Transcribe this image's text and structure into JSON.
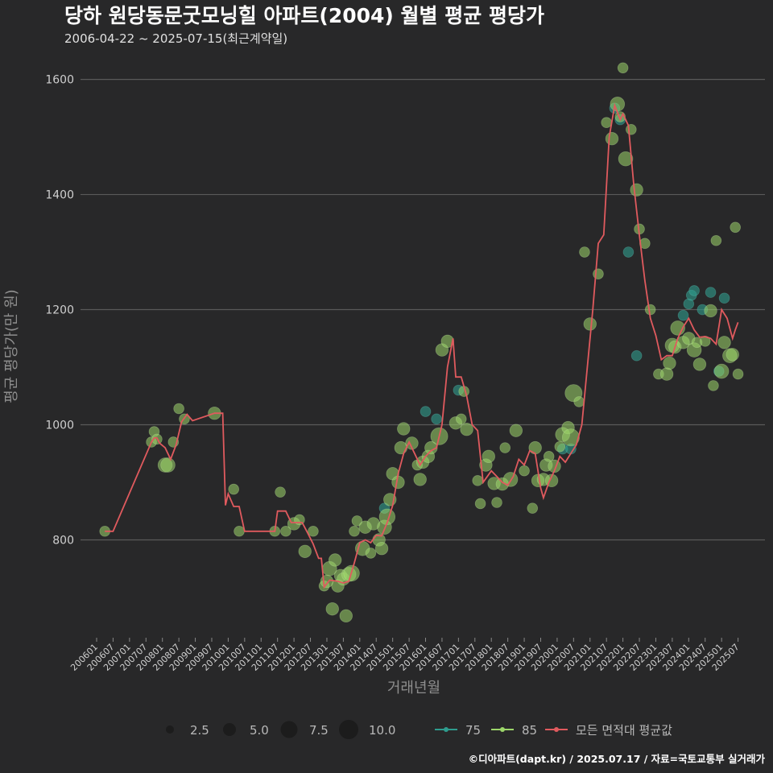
{
  "chart_data": {
    "type": "scatter",
    "title": "당하 원당동문굿모닝힐 아파트(2004) 월별 평균 평당가",
    "subtitle": "2006-04-22 ~ 2025-07-15(최근계약일)",
    "xlabel": "거래년월",
    "ylabel": "평균 평당가(만 원)",
    "caption": "©디아파트(dapt.kr) / 2025.07.17 / 자료=국토교통부 실거래가",
    "ylim": [
      630,
      1640
    ],
    "yticks": [
      800,
      1000,
      1200,
      1400,
      1600
    ],
    "x_range": [
      "2006-01",
      "2025-08"
    ],
    "x_tick_labels": [
      "200601",
      "200607",
      "200701",
      "200707",
      "200801",
      "200807",
      "200901",
      "200907",
      "201001",
      "201007",
      "201101",
      "201107",
      "201201",
      "201207",
      "201301",
      "201307",
      "201401",
      "201407",
      "201501",
      "201507",
      "201601",
      "201607",
      "201701",
      "201707",
      "201801",
      "201807",
      "201901",
      "201907",
      "202001",
      "202007",
      "202101",
      "202107",
      "202201",
      "202207",
      "202301",
      "202307",
      "202401",
      "202407",
      "202501",
      "202507"
    ],
    "colors": {
      "background": "#282829",
      "grid": "#5a5a5a",
      "area_75": "#2e9c8e",
      "area_85": "#9cd66a",
      "avg_line": "#e05a5e"
    },
    "size_legend": {
      "title": "",
      "values": [
        "2.5",
        "5.0",
        "7.5",
        "10.0"
      ]
    },
    "color_legend": [
      {
        "label": "75",
        "color": "#2e9c8e"
      },
      {
        "label": "85",
        "color": "#9cd66a"
      },
      {
        "label": "모든 면적대 평균값",
        "color": "#e05a5e"
      }
    ],
    "series": [
      {
        "name": "75",
        "points": [
          [
            "2014-10",
            855,
            1
          ],
          [
            "2016-01",
            1023,
            1
          ],
          [
            "2016-05",
            1010,
            1
          ],
          [
            "2017-01",
            1060,
            1
          ],
          [
            "2020-03",
            958,
            1
          ],
          [
            "2020-06",
            958,
            1
          ],
          [
            "2021-10",
            1550,
            1
          ],
          [
            "2021-12",
            1530,
            1
          ],
          [
            "2022-03",
            1300,
            1
          ],
          [
            "2022-06",
            1120,
            1
          ],
          [
            "2023-11",
            1190,
            1
          ],
          [
            "2024-01",
            1210,
            1
          ],
          [
            "2024-02",
            1225,
            1
          ],
          [
            "2024-03",
            1233,
            1
          ],
          [
            "2024-06",
            1200,
            1
          ],
          [
            "2024-09",
            1230,
            1
          ],
          [
            "2024-12",
            1093,
            1
          ],
          [
            "2025-02",
            1220,
            1
          ]
        ]
      },
      {
        "name": "85",
        "points": [
          [
            "2006-04",
            815,
            1
          ],
          [
            "2007-09",
            970,
            1
          ],
          [
            "2007-10",
            988,
            1
          ],
          [
            "2007-11",
            975,
            1
          ],
          [
            "2008-02",
            930,
            3
          ],
          [
            "2008-03",
            930,
            3
          ],
          [
            "2008-05",
            970,
            1
          ],
          [
            "2008-07",
            1028,
            1
          ],
          [
            "2008-09",
            1010,
            1
          ],
          [
            "2009-08",
            1020,
            2
          ],
          [
            "2010-03",
            888,
            1
          ],
          [
            "2010-05",
            815,
            1
          ],
          [
            "2011-06",
            815,
            1
          ],
          [
            "2011-08",
            883,
            1
          ],
          [
            "2011-10",
            815,
            1
          ],
          [
            "2012-01",
            828,
            2
          ],
          [
            "2012-03",
            835,
            1
          ],
          [
            "2012-05",
            780,
            2
          ],
          [
            "2012-08",
            815,
            1
          ],
          [
            "2012-12",
            720,
            1
          ],
          [
            "2013-01",
            728,
            2
          ],
          [
            "2013-02",
            750,
            3
          ],
          [
            "2013-03",
            680,
            2
          ],
          [
            "2013-04",
            765,
            2
          ],
          [
            "2013-05",
            720,
            2
          ],
          [
            "2013-06",
            738,
            2
          ],
          [
            "2013-07",
            732,
            2
          ],
          [
            "2013-08",
            668,
            2
          ],
          [
            "2013-09",
            740,
            3
          ],
          [
            "2013-10",
            742,
            4
          ],
          [
            "2013-11",
            815,
            1
          ],
          [
            "2013-12",
            833,
            1
          ],
          [
            "2014-02",
            785,
            3
          ],
          [
            "2014-03",
            822,
            2
          ],
          [
            "2014-05",
            777,
            1
          ],
          [
            "2014-06",
            828,
            2
          ],
          [
            "2014-08",
            800,
            2
          ],
          [
            "2014-09",
            785,
            2
          ],
          [
            "2014-10",
            822,
            3
          ],
          [
            "2014-11",
            840,
            4
          ],
          [
            "2014-12",
            870,
            2
          ],
          [
            "2015-01",
            915,
            2
          ],
          [
            "2015-03",
            900,
            2
          ],
          [
            "2015-04",
            960,
            2
          ],
          [
            "2015-05",
            993,
            2
          ],
          [
            "2015-08",
            968,
            2
          ],
          [
            "2015-10",
            930,
            1
          ],
          [
            "2015-11",
            905,
            2
          ],
          [
            "2015-12",
            935,
            2
          ],
          [
            "2016-02",
            945,
            2
          ],
          [
            "2016-03",
            960,
            2
          ],
          [
            "2016-06",
            980,
            5
          ],
          [
            "2016-07",
            1130,
            2
          ],
          [
            "2016-09",
            1145,
            2
          ],
          [
            "2016-12",
            1003,
            2
          ],
          [
            "2017-02",
            1010,
            1
          ],
          [
            "2017-03",
            1058,
            1
          ],
          [
            "2017-04",
            992,
            2
          ],
          [
            "2017-08",
            903,
            1
          ],
          [
            "2017-09",
            863,
            1
          ],
          [
            "2017-11",
            930,
            2
          ],
          [
            "2017-12",
            945,
            2
          ],
          [
            "2018-02",
            898,
            2
          ],
          [
            "2018-03",
            865,
            1
          ],
          [
            "2018-05",
            897,
            2
          ],
          [
            "2018-06",
            960,
            1
          ],
          [
            "2018-08",
            905,
            3
          ],
          [
            "2018-10",
            990,
            2
          ],
          [
            "2019-01",
            920,
            1
          ],
          [
            "2019-04",
            855,
            1
          ],
          [
            "2019-05",
            960,
            2
          ],
          [
            "2019-06",
            903,
            2
          ],
          [
            "2019-08",
            905,
            2
          ],
          [
            "2019-09",
            930,
            2
          ],
          [
            "2019-10",
            945,
            1
          ],
          [
            "2019-11",
            903,
            2
          ],
          [
            "2019-12",
            928,
            2
          ],
          [
            "2020-02",
            962,
            1
          ],
          [
            "2020-03",
            983,
            3
          ],
          [
            "2020-05",
            995,
            2
          ],
          [
            "2020-06",
            978,
            5
          ],
          [
            "2020-07",
            1055,
            5
          ],
          [
            "2020-09",
            1040,
            1
          ],
          [
            "2020-11",
            1300,
            1
          ],
          [
            "2021-01",
            1175,
            2
          ],
          [
            "2021-04",
            1262,
            1
          ],
          [
            "2021-07",
            1525,
            1
          ],
          [
            "2021-09",
            1497,
            2
          ],
          [
            "2021-11",
            1557,
            3
          ],
          [
            "2021-12",
            1535,
            1
          ],
          [
            "2022-01",
            1620,
            1
          ],
          [
            "2022-02",
            1462,
            3
          ],
          [
            "2022-04",
            1513,
            1
          ],
          [
            "2022-06",
            1408,
            2
          ],
          [
            "2022-07",
            1340,
            1
          ],
          [
            "2022-09",
            1315,
            1
          ],
          [
            "2022-11",
            1200,
            1
          ],
          [
            "2023-02",
            1088,
            1
          ],
          [
            "2023-05",
            1088,
            2
          ],
          [
            "2023-06",
            1107,
            2
          ],
          [
            "2023-07",
            1138,
            3
          ],
          [
            "2023-08",
            1135,
            2
          ],
          [
            "2023-09",
            1168,
            3
          ],
          [
            "2023-11",
            1143,
            2
          ],
          [
            "2024-01",
            1150,
            2
          ],
          [
            "2024-03",
            1130,
            3
          ],
          [
            "2024-04",
            1143,
            1
          ],
          [
            "2024-05",
            1105,
            2
          ],
          [
            "2024-07",
            1145,
            1
          ],
          [
            "2024-09",
            1198,
            2
          ],
          [
            "2024-10",
            1068,
            1
          ],
          [
            "2024-11",
            1320,
            1
          ],
          [
            "2025-01",
            1093,
            3
          ],
          [
            "2025-02",
            1143,
            2
          ],
          [
            "2025-04",
            1120,
            3
          ],
          [
            "2025-05",
            1122,
            2
          ],
          [
            "2025-07",
            1088,
            1
          ],
          [
            "2025-06",
            1343,
            1
          ]
        ]
      }
    ],
    "avg_line": [
      [
        "2006-04",
        815
      ],
      [
        "2006-07",
        815
      ],
      [
        "2007-09",
        970
      ],
      [
        "2007-10",
        977
      ],
      [
        "2007-11",
        977
      ],
      [
        "2007-12",
        968
      ],
      [
        "2008-02",
        960
      ],
      [
        "2008-04",
        940
      ],
      [
        "2008-06",
        965
      ],
      [
        "2008-08",
        1005
      ],
      [
        "2008-10",
        1018
      ],
      [
        "2008-12",
        1007
      ],
      [
        "2009-08",
        1020
      ],
      [
        "2009-11",
        1020
      ],
      [
        "2009-12",
        860
      ],
      [
        "2010-01",
        880
      ],
      [
        "2010-03",
        858
      ],
      [
        "2010-05",
        858
      ],
      [
        "2010-07",
        815
      ],
      [
        "2011-06",
        815
      ],
      [
        "2011-07",
        850
      ],
      [
        "2011-10",
        850
      ],
      [
        "2011-12",
        830
      ],
      [
        "2012-01",
        830
      ],
      [
        "2012-04",
        830
      ],
      [
        "2012-06",
        812
      ],
      [
        "2012-08",
        793
      ],
      [
        "2012-10",
        768
      ],
      [
        "2012-11",
        768
      ],
      [
        "2012-12",
        718
      ],
      [
        "2013-02",
        730
      ],
      [
        "2013-05",
        728
      ],
      [
        "2013-07",
        725
      ],
      [
        "2013-09",
        728
      ],
      [
        "2013-11",
        760
      ],
      [
        "2014-01",
        795
      ],
      [
        "2014-03",
        800
      ],
      [
        "2014-05",
        795
      ],
      [
        "2014-07",
        808
      ],
      [
        "2014-09",
        807
      ],
      [
        "2014-11",
        830
      ],
      [
        "2015-01",
        860
      ],
      [
        "2015-03",
        915
      ],
      [
        "2015-05",
        950
      ],
      [
        "2015-07",
        970
      ],
      [
        "2015-09",
        950
      ],
      [
        "2015-11",
        930
      ],
      [
        "2016-01",
        945
      ],
      [
        "2016-03",
        955
      ],
      [
        "2016-05",
        960
      ],
      [
        "2016-07",
        1000
      ],
      [
        "2016-09",
        1100
      ],
      [
        "2016-11",
        1150
      ],
      [
        "2016-12",
        1083
      ],
      [
        "2017-02",
        1083
      ],
      [
        "2017-04",
        1050
      ],
      [
        "2017-06",
        1000
      ],
      [
        "2017-08",
        990
      ],
      [
        "2017-10",
        900
      ],
      [
        "2018-01",
        920
      ],
      [
        "2018-03",
        910
      ],
      [
        "2018-05",
        900
      ],
      [
        "2018-07",
        895
      ],
      [
        "2018-09",
        910
      ],
      [
        "2018-11",
        940
      ],
      [
        "2019-01",
        930
      ],
      [
        "2019-03",
        955
      ],
      [
        "2019-05",
        950
      ],
      [
        "2019-07",
        890
      ],
      [
        "2019-08",
        873
      ],
      [
        "2019-10",
        900
      ],
      [
        "2019-12",
        920
      ],
      [
        "2020-02",
        945
      ],
      [
        "2020-04",
        935
      ],
      [
        "2020-06",
        950
      ],
      [
        "2020-08",
        965
      ],
      [
        "2020-10",
        1000
      ],
      [
        "2020-12",
        1100
      ],
      [
        "2021-02",
        1200
      ],
      [
        "2021-04",
        1315
      ],
      [
        "2021-06",
        1330
      ],
      [
        "2021-08",
        1500
      ],
      [
        "2021-10",
        1555
      ],
      [
        "2021-12",
        1530
      ],
      [
        "2022-01",
        1540
      ],
      [
        "2022-03",
        1520
      ],
      [
        "2022-05",
        1415
      ],
      [
        "2022-07",
        1330
      ],
      [
        "2022-09",
        1250
      ],
      [
        "2022-11",
        1185
      ],
      [
        "2023-01",
        1155
      ],
      [
        "2023-03",
        1113
      ],
      [
        "2023-05",
        1120
      ],
      [
        "2023-07",
        1120
      ],
      [
        "2023-09",
        1150
      ],
      [
        "2023-11",
        1170
      ],
      [
        "2024-01",
        1185
      ],
      [
        "2024-03",
        1165
      ],
      [
        "2024-05",
        1152
      ],
      [
        "2024-07",
        1153
      ],
      [
        "2024-09",
        1150
      ],
      [
        "2024-11",
        1140
      ],
      [
        "2025-01",
        1200
      ],
      [
        "2025-03",
        1185
      ],
      [
        "2025-05",
        1150
      ],
      [
        "2025-06",
        1165
      ],
      [
        "2025-07",
        1178
      ]
    ]
  }
}
